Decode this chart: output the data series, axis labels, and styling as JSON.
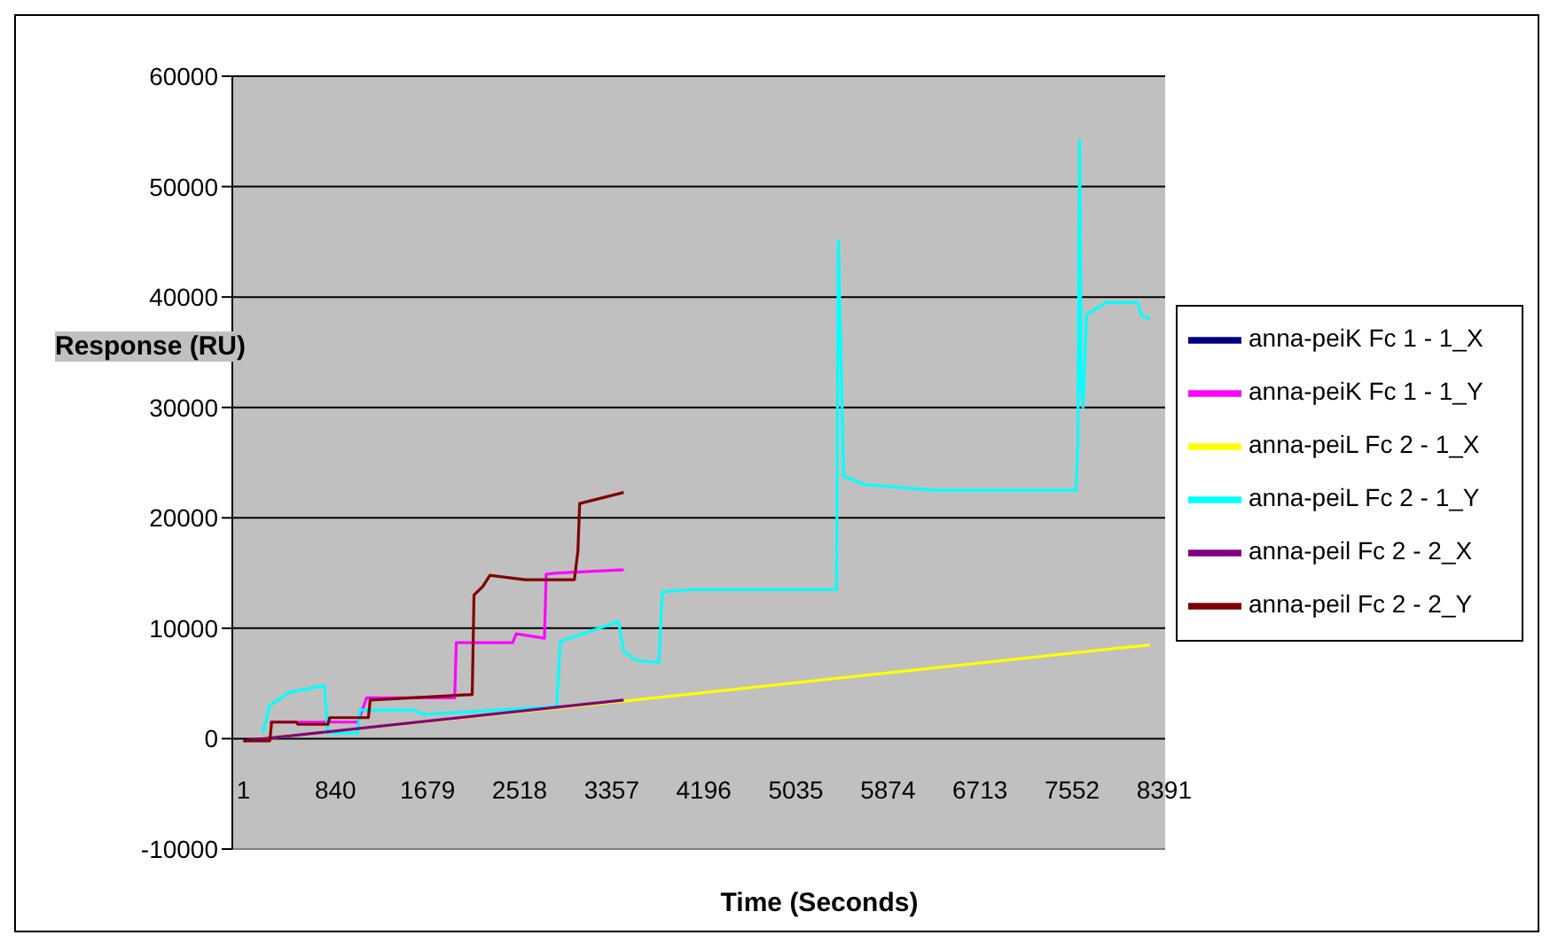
{
  "chart_data": {
    "type": "line",
    "xlabel": "Time (Seconds)",
    "ylabel": "Response (RU)",
    "xlim": [
      -100,
      8400
    ],
    "xticks": [
      1,
      840,
      1679,
      2518,
      3357,
      4196,
      5035,
      5874,
      6713,
      7552,
      8391
    ],
    "ylim": [
      -10000,
      60000
    ],
    "yticks": [
      -10000,
      0,
      10000,
      20000,
      30000,
      40000,
      50000,
      60000
    ],
    "grid": "y",
    "legend": "right",
    "marker": "none",
    "line_style": "solid",
    "series": [
      {
        "name": "anna-peiK Fc 1 - 1_X",
        "color": "#000080"
      },
      {
        "name": "anna-peiK Fc 1 - 1_Y",
        "color": "#ff00ff",
        "x": [
          242,
          1044,
          1124,
          1926,
          1941,
          2455,
          2487,
          2744,
          2760,
          2856,
          3466
        ],
        "values": [
          1500,
          1500,
          3700,
          3700,
          8700,
          8700,
          9500,
          9100,
          14900,
          15000,
          15300
        ]
      },
      {
        "name": "anna-peiL Fc 2 - 1_X",
        "color": "#ffff00",
        "x": [
          177,
          3466,
          8261
        ],
        "values": [
          0,
          3400,
          8500
        ]
      },
      {
        "name": "anna-peiL Fc 2 - 1_Y",
        "color": "#00ffff",
        "x": [
          177,
          242,
          418,
          739,
          771,
          1044,
          1060,
          1541,
          1653,
          2856,
          2888,
          3418,
          3466,
          3578,
          3787,
          3819,
          4059,
          5406,
          5422,
          5470,
          5663,
          6304,
          7588,
          7604,
          7620,
          7636,
          7652,
          7684,
          7861,
          8149,
          8181,
          8261
        ],
        "values": [
          500,
          3000,
          4200,
          4800,
          500,
          500,
          2600,
          2600,
          2200,
          2900,
          8800,
          10600,
          7900,
          7100,
          6900,
          13300,
          13500,
          13500,
          45100,
          23800,
          23000,
          22500,
          22500,
          26600,
          54200,
          31800,
          30000,
          38400,
          39500,
          39500,
          38400,
          38000
        ]
      },
      {
        "name": "anna-peil Fc 2 - 2_X",
        "color": "#800080",
        "x": [
          1,
          3466
        ],
        "values": [
          -200,
          3500
        ]
      },
      {
        "name": "anna-peil Fc 2 - 2_Y",
        "color": "#800000",
        "x": [
          1,
          242,
          258,
          482,
          498,
          771,
          787,
          1140,
          1156,
          2086,
          2102,
          2183,
          2247,
          2567,
          3017,
          3049,
          3065,
          3466
        ],
        "values": [
          -200,
          -200,
          1500,
          1500,
          1300,
          1300,
          1900,
          1900,
          3500,
          4000,
          13000,
          13800,
          14800,
          14400,
          14400,
          17000,
          21300,
          22300
        ]
      }
    ]
  }
}
